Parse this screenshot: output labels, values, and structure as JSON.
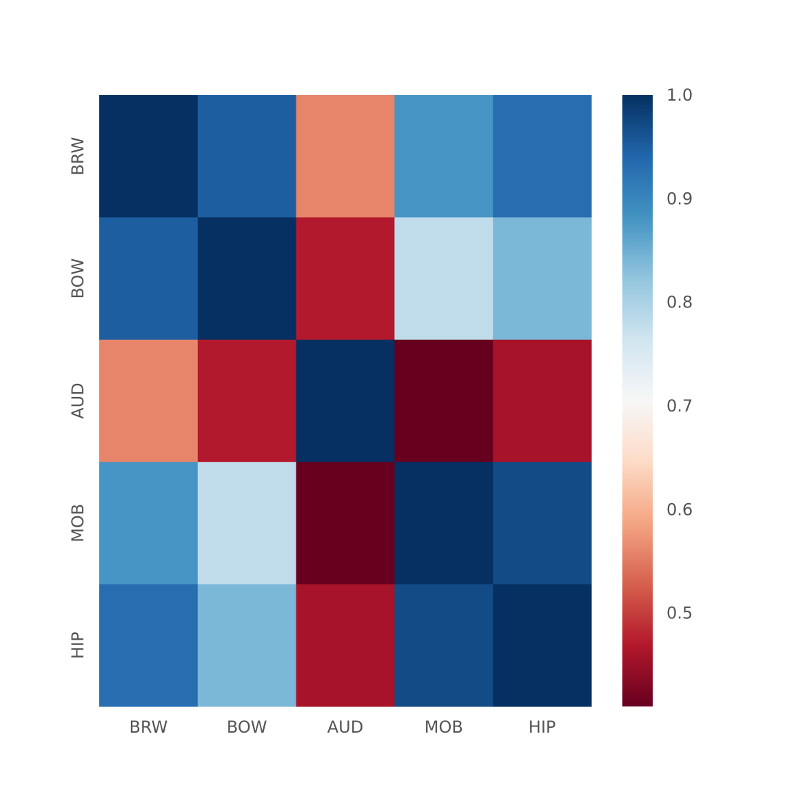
{
  "chart_data": {
    "type": "heatmap",
    "title": "",
    "xlabel": "",
    "ylabel": "",
    "x_labels": [
      "BRW",
      "BOW",
      "AUD",
      "MOB",
      "HIP"
    ],
    "y_labels": [
      "BRW",
      "BOW",
      "AUD",
      "MOB",
      "HIP"
    ],
    "values": [
      [
        1.0,
        0.95,
        0.56,
        0.88,
        0.93
      ],
      [
        0.95,
        1.0,
        0.47,
        0.78,
        0.84
      ],
      [
        0.56,
        0.47,
        1.0,
        0.41,
        0.46
      ],
      [
        0.88,
        0.78,
        0.41,
        1.0,
        0.97
      ],
      [
        0.93,
        0.84,
        0.46,
        0.97,
        1.0
      ]
    ],
    "colorbar": {
      "colormap": "RdBu",
      "range": [
        0.41,
        1.0
      ],
      "ticks": [
        "1.0",
        "0.9",
        "0.8",
        "0.7",
        "0.6",
        "0.5"
      ]
    },
    "grid": false,
    "legend": "colorbar-right"
  }
}
